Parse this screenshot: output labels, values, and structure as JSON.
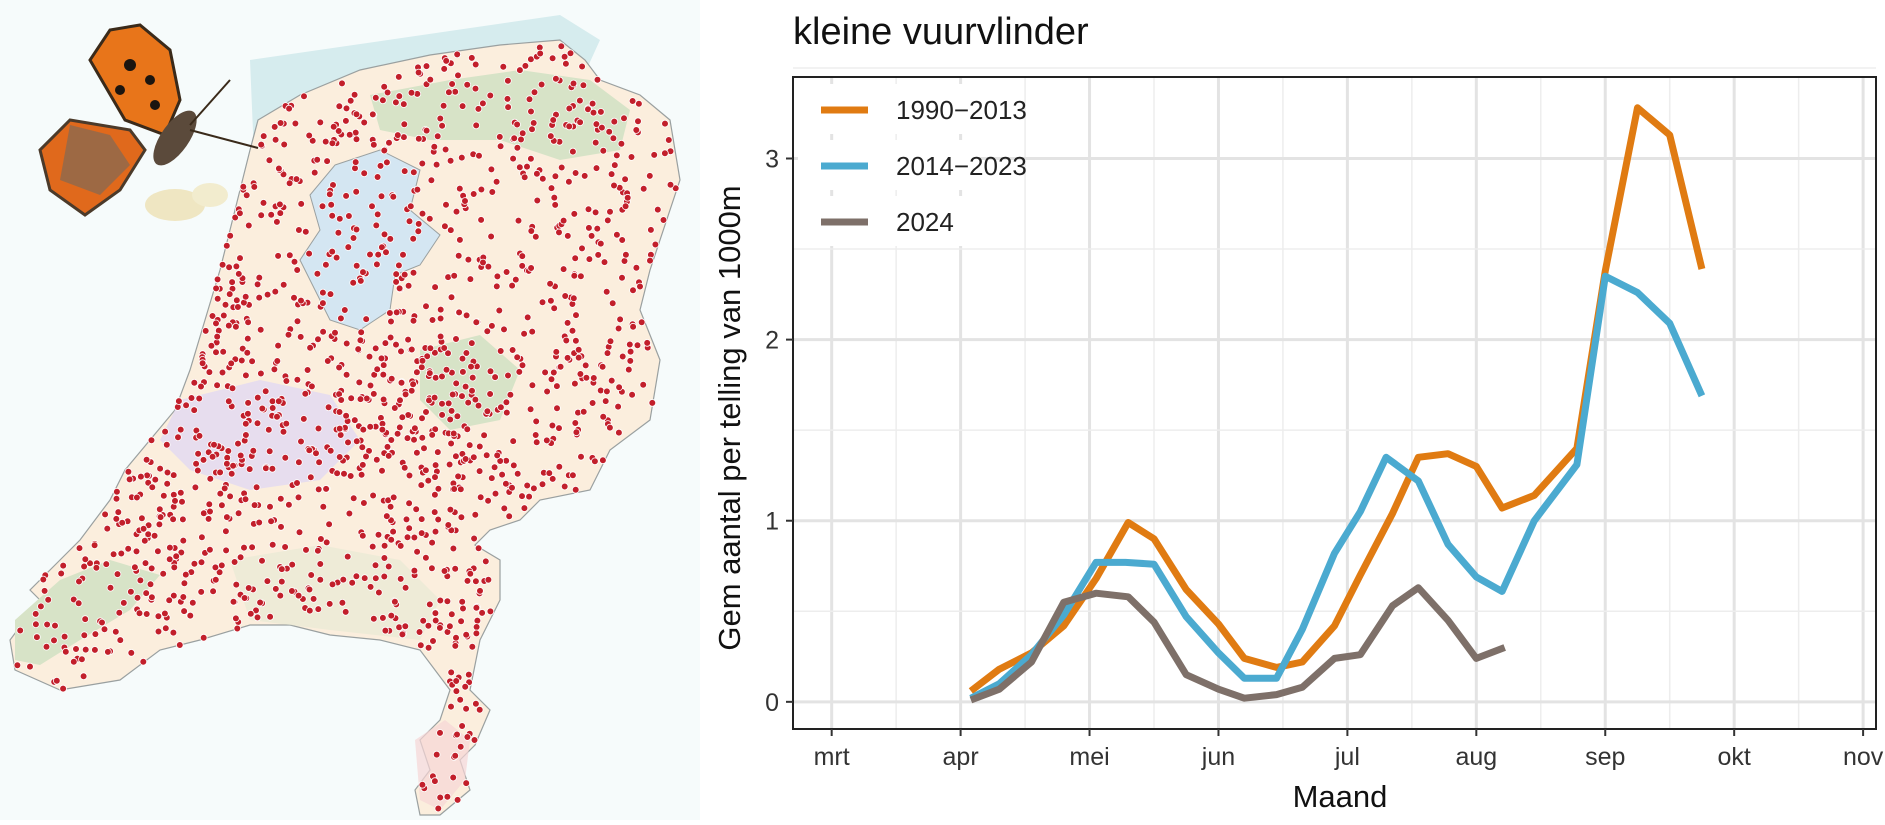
{
  "chart_data": {
    "type": "line",
    "title": "kleine vuurvlinder",
    "xlabel": "Maand",
    "ylabel": "Gem aantal per telling van 1000m",
    "x_categories": [
      "mrt",
      "apr",
      "mei",
      "jun",
      "jul",
      "aug",
      "sep",
      "okt",
      "nov"
    ],
    "x_unit": "month index (mrt=0 … nov=8)",
    "xlim": [
      -0.3,
      8.1
    ],
    "ylim": [
      -0.15,
      3.45
    ],
    "yticks": [
      0,
      1,
      2,
      3
    ],
    "grid": true,
    "legend_position": "top-left",
    "series": [
      {
        "name": "1990−2013",
        "color": "#E07B12",
        "x": [
          1.08,
          1.3,
          1.55,
          1.8,
          2.05,
          2.3,
          2.5,
          2.75,
          3.0,
          3.2,
          3.45,
          3.65,
          3.9,
          4.1,
          4.35,
          4.55,
          4.78,
          5.0,
          5.2,
          5.45,
          5.78,
          6.0,
          6.25,
          6.5,
          6.75
        ],
        "y": [
          0.06,
          0.18,
          0.27,
          0.42,
          0.68,
          0.99,
          0.9,
          0.62,
          0.43,
          0.24,
          0.19,
          0.22,
          0.42,
          0.7,
          1.04,
          1.35,
          1.37,
          1.3,
          1.07,
          1.14,
          1.4,
          2.38,
          3.28,
          3.13,
          2.39
        ]
      },
      {
        "name": "2014−2023",
        "color": "#4BAAD0",
        "x": [
          1.08,
          1.3,
          1.55,
          1.8,
          2.05,
          2.28,
          2.5,
          2.75,
          3.0,
          3.2,
          3.45,
          3.65,
          3.9,
          4.1,
          4.3,
          4.55,
          4.78,
          5.0,
          5.2,
          5.45,
          5.78,
          6.0,
          6.25,
          6.5,
          6.75
        ],
        "y": [
          0.02,
          0.1,
          0.26,
          0.48,
          0.77,
          0.77,
          0.76,
          0.47,
          0.27,
          0.13,
          0.13,
          0.4,
          0.82,
          1.05,
          1.35,
          1.22,
          0.87,
          0.69,
          0.61,
          1.0,
          1.31,
          2.35,
          2.26,
          2.09,
          1.69
        ]
      },
      {
        "name": "2024",
        "color": "#7E7069",
        "x": [
          1.08,
          1.3,
          1.55,
          1.8,
          2.05,
          2.3,
          2.5,
          2.75,
          3.0,
          3.2,
          3.45,
          3.65,
          3.9,
          4.1,
          4.35,
          4.55,
          4.78,
          5.0,
          5.22
        ],
        "y": [
          0.01,
          0.07,
          0.22,
          0.55,
          0.6,
          0.58,
          0.44,
          0.15,
          0.07,
          0.02,
          0.04,
          0.08,
          0.24,
          0.26,
          0.53,
          0.63,
          0.45,
          0.24,
          0.3
        ]
      }
    ]
  },
  "map": {
    "land_fill": "#FBEEDD",
    "sea_fill": "#D6ECEE",
    "water_fill": "#DCEBF4",
    "nature_fill": "#D7E3C7",
    "urban_fill": "#E2D8F2",
    "dot_color": "#C21F2B"
  }
}
